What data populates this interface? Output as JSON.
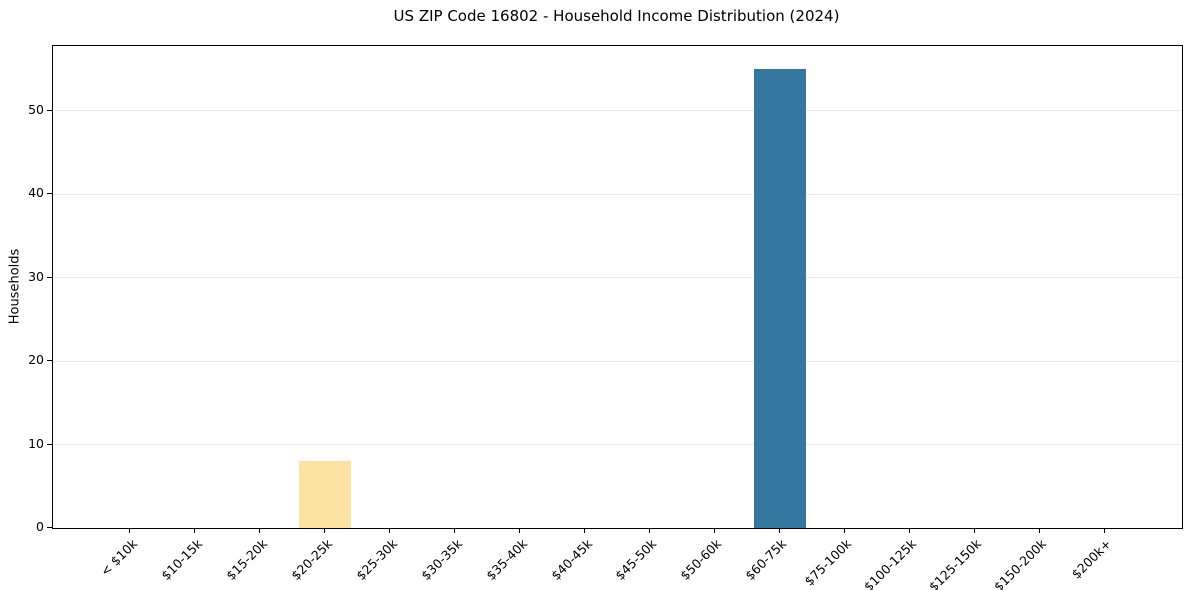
{
  "figure": {
    "background": "#ffffff",
    "spine_color": "#000000",
    "text_color": "#000000"
  },
  "chart_data": {
    "type": "bar",
    "title": "US ZIP Code 16802 - Household Income Distribution (2024)",
    "xlabel": "",
    "ylabel": "Households",
    "categories": [
      "< $10k",
      "$10-15k",
      "$15-20k",
      "$20-25k",
      "$25-30k",
      "$30-35k",
      "$35-40k",
      "$40-45k",
      "$45-50k",
      "$50-60k",
      "$60-75k",
      "$75-100k",
      "$100-125k",
      "$125-150k",
      "$150-200k",
      "$200k+"
    ],
    "values": [
      0,
      0,
      0,
      8,
      0,
      0,
      0,
      0,
      0,
      0,
      55,
      0,
      0,
      0,
      0,
      0
    ],
    "bar_colors": [
      null,
      null,
      null,
      "#fce3a1",
      null,
      null,
      null,
      null,
      null,
      null,
      "#34789f",
      null,
      null,
      null,
      null,
      null
    ],
    "bar_width": 0.8,
    "yticks": [
      0,
      10,
      20,
      30,
      40,
      50
    ],
    "ylim": [
      0,
      57.75
    ],
    "xlim": [
      -1.19,
      16.19
    ],
    "x_tick_rotation_deg": 45,
    "grid": {
      "axis": "y",
      "color": "#e9e9e9",
      "visible": true
    },
    "legend": "none"
  }
}
